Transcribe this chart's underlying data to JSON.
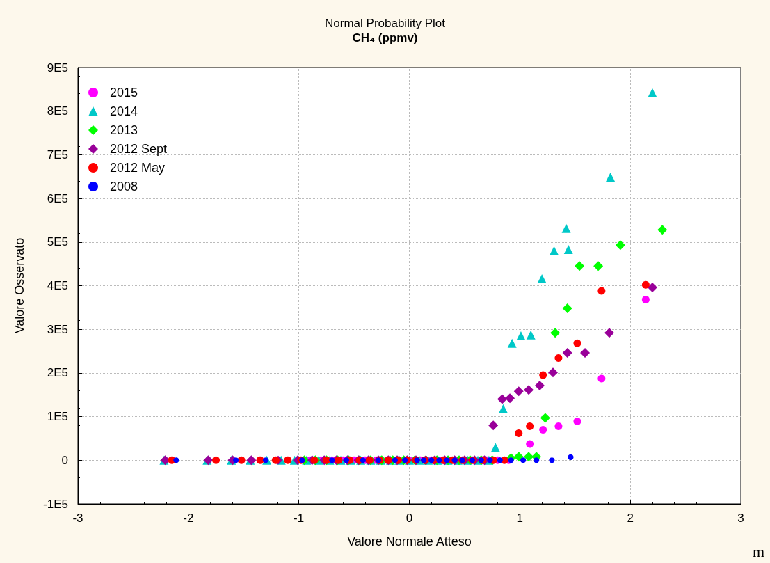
{
  "chart_data": {
    "type": "scatter",
    "title": "Normal Probability Plot",
    "subtitle": "CH₄ (ppmv)",
    "xlabel": "Valore Normale Atteso",
    "ylabel": "Valore Osservato",
    "xlim": [
      -3,
      3
    ],
    "xticks": [
      -3,
      -2,
      -1,
      0,
      1,
      2,
      3
    ],
    "ylim": [
      -100000,
      900000
    ],
    "yticks": [
      {
        "value": -100000,
        "label": "-1E5"
      },
      0,
      {
        "value": 100000,
        "label": "1E5"
      },
      {
        "value": 200000,
        "label": "2E5"
      },
      {
        "value": 300000,
        "label": "3E5"
      },
      {
        "value": 400000,
        "label": "4E5"
      },
      {
        "value": 500000,
        "label": "5E5"
      },
      {
        "value": 600000,
        "label": "6E5"
      },
      {
        "value": 700000,
        "label": "7E5"
      },
      {
        "value": 800000,
        "label": "8E5"
      },
      {
        "value": 900000,
        "label": "9E5"
      }
    ],
    "grid": true,
    "legend": "top left",
    "annotations": [
      "m"
    ],
    "series": [
      {
        "name": "2015",
        "color": "#ff00ff",
        "marker": "circle",
        "x": [
          -0.9,
          -0.8,
          -0.7,
          -0.6,
          -0.5,
          -0.4,
          -0.3,
          -0.2,
          0.0,
          0.1,
          0.2,
          0.3,
          0.7,
          0.8,
          0.9,
          1.09,
          1.21,
          1.35,
          1.52,
          1.74,
          2.14
        ],
        "values": [
          0,
          0,
          0,
          0,
          0,
          0,
          0,
          0,
          0,
          0,
          0,
          0,
          0,
          0,
          0,
          37000,
          70000,
          78000,
          89000,
          187000,
          368000
        ]
      },
      {
        "name": "2014",
        "color": "#00c8c8",
        "marker": "triangle",
        "x": [
          -2.22,
          -1.83,
          -1.61,
          -1.44,
          -1.29,
          -1.16,
          -1.04,
          -0.93,
          -0.82,
          -0.72,
          -0.62,
          -0.53,
          -0.44,
          -0.35,
          -0.26,
          -0.17,
          -0.09,
          0.0,
          0.09,
          0.17,
          0.26,
          0.35,
          0.44,
          0.53,
          0.62,
          0.72,
          0.78,
          0.85,
          0.93,
          1.01,
          1.1,
          1.2,
          1.31,
          1.44,
          1.42,
          1.82,
          2.2
        ],
        "values": [
          0,
          0,
          0,
          0,
          0,
          0,
          0,
          0,
          0,
          0,
          0,
          0,
          0,
          0,
          0,
          0,
          0,
          0,
          0,
          0,
          0,
          0,
          0,
          0,
          0,
          0,
          29000,
          118000,
          268000,
          285000,
          287000,
          416000,
          480000,
          483000,
          531000,
          649000,
          842000
        ]
      },
      {
        "name": "2013",
        "color": "#00ff00",
        "marker": "diamond",
        "x": [
          -0.95,
          -0.85,
          -0.75,
          -0.65,
          -0.55,
          -0.45,
          -0.35,
          -0.25,
          -0.15,
          -0.05,
          0.05,
          0.15,
          0.25,
          0.35,
          0.45,
          0.55,
          0.65,
          0.75,
          0.85,
          0.92,
          0.99,
          1.08,
          1.15,
          1.23,
          1.32,
          1.43,
          1.54,
          1.71,
          1.91,
          2.29
        ],
        "values": [
          0,
          0,
          0,
          0,
          0,
          0,
          0,
          0,
          0,
          0,
          0,
          0,
          0,
          0,
          0,
          0,
          0,
          0,
          null,
          5000,
          8000,
          8000,
          8000,
          97000,
          292000,
          348000,
          445000,
          445000,
          493000,
          528000
        ]
      },
      {
        "name": "2012 Sept",
        "color": "#990099",
        "marker": "diamond",
        "x": [
          -2.21,
          -1.82,
          -1.6,
          -1.43,
          -1.19,
          -1.01,
          -0.88,
          -0.77,
          -0.66,
          -0.56,
          -0.46,
          -0.37,
          -0.28,
          -0.19,
          -0.11,
          -0.02,
          0.06,
          0.15,
          0.23,
          0.32,
          0.41,
          0.5,
          0.59,
          0.68,
          0.76,
          0.84,
          0.91,
          0.99,
          1.08,
          1.18,
          1.3,
          1.43,
          1.59,
          1.81,
          2.2
        ],
        "values": [
          0,
          0,
          0,
          0,
          0,
          0,
          0,
          0,
          0,
          0,
          0,
          0,
          0,
          0,
          0,
          0,
          0,
          0,
          0,
          0,
          0,
          0,
          0,
          0,
          80000,
          140000,
          142000,
          158000,
          161000,
          171000,
          201000,
          246000,
          246000,
          292000,
          396000
        ]
      },
      {
        "name": "2012 May",
        "color": "#ff0000",
        "marker": "circle",
        "x": [
          -2.15,
          -1.75,
          -1.52,
          -1.35,
          -1.21,
          -1.1,
          -0.98,
          -0.86,
          -0.75,
          -0.64,
          -0.54,
          -0.45,
          -0.36,
          -0.27,
          -0.19,
          -0.1,
          -0.02,
          0.06,
          0.14,
          0.22,
          0.31,
          0.39,
          0.48,
          0.57,
          0.66,
          0.76,
          0.86,
          0.99,
          1.09,
          1.21,
          1.35,
          1.52,
          1.74,
          2.14
        ],
        "values": [
          0,
          0,
          0,
          0,
          0,
          0,
          0,
          0,
          0,
          0,
          0,
          0,
          0,
          0,
          0,
          0,
          0,
          0,
          0,
          0,
          0,
          0,
          0,
          0,
          0,
          0,
          0,
          62000,
          78000,
          195000,
          234000,
          268000,
          388000,
          402000
        ]
      },
      {
        "name": "2008",
        "color": "#0000ff",
        "marker": "circle",
        "x": [
          -2.11,
          -1.57,
          -1.3,
          -0.97,
          -0.7,
          -0.57,
          -0.42,
          -0.28,
          -0.13,
          -0.04,
          0.07,
          0.13,
          0.2,
          0.27,
          0.34,
          0.41,
          0.48,
          0.57,
          0.65,
          0.73,
          0.82,
          0.92,
          1.03,
          1.15,
          1.29,
          1.46
        ],
        "values": [
          0,
          0,
          0,
          0,
          0,
          0,
          0,
          0,
          0,
          0,
          0,
          0,
          0,
          0,
          0,
          0,
          0,
          0,
          0,
          0,
          0,
          0,
          0,
          0,
          0,
          7000
        ]
      }
    ]
  }
}
